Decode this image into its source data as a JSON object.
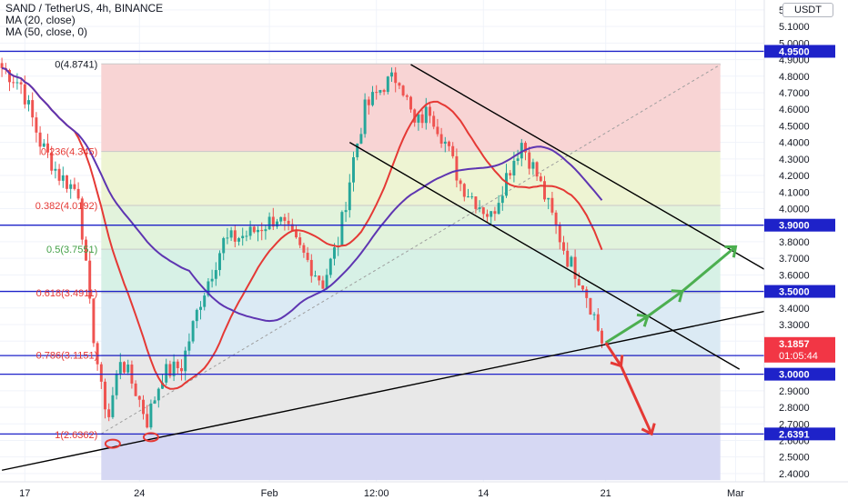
{
  "header": {
    "symbol_line": "SAND / TetherUS, 4h, BINANCE",
    "ma1": "MA (20, close)",
    "ma2": "MA (50, close, 0)"
  },
  "currency": "USDT",
  "colors": {
    "candle_up": "#26a69a",
    "candle_down": "#ef5350",
    "ma20": "#e53935",
    "ma50": "#5e35b1",
    "hline": "#1e22c9",
    "trend": "#000000",
    "arrow_up": "#4caf50",
    "arrow_down": "#e53935",
    "fib_label": "#e53935",
    "fib_label_05": "#43a047",
    "price_tag": "#1e22c9",
    "last_price_tag": "#f23645"
  },
  "chart_data": {
    "type": "candlestick",
    "title": "SAND / TetherUS, 4h, BINANCE",
    "ylim": [
      2.35,
      5.26
    ],
    "y_ticks": [
      2.4,
      2.5,
      2.6,
      2.7,
      2.8,
      2.9,
      3.0,
      3.1,
      3.2,
      3.3,
      3.4,
      3.5,
      3.6,
      3.7,
      3.8,
      3.9,
      4.0,
      4.1,
      4.2,
      4.3,
      4.4,
      4.5,
      4.6,
      4.7,
      4.8,
      4.9,
      5.0,
      5.1,
      5.2
    ],
    "y_tick_labels": [
      "2.4000",
      "2.5000",
      "2.6000",
      "2.7000",
      "2.8000",
      "2.9000",
      "3.0000",
      "3.1000",
      "3.2000",
      "3.3000",
      "3.4000",
      "3.5000",
      "3.6000",
      "3.7000",
      "3.8000",
      "3.9000",
      "4.0000",
      "4.1000",
      "4.2000",
      "4.3000",
      "4.4000",
      "4.5000",
      "4.6000",
      "4.7000",
      "4.8000",
      "4.9000",
      "5.0000",
      "5.1000",
      "5.2000"
    ],
    "x_labels": [
      "17",
      "24",
      "Feb",
      "12:00",
      "14",
      "21",
      "Mar"
    ],
    "x_label_bars": [
      6,
      36,
      70,
      98,
      126,
      158,
      192
    ],
    "n_bars": 200,
    "last_bar": 157,
    "close_path": [
      [
        0,
        4.85
      ],
      [
        5,
        4.75
      ],
      [
        10,
        4.4
      ],
      [
        15,
        4.2
      ],
      [
        20,
        4.1
      ],
      [
        23,
        3.4
      ],
      [
        26,
        2.9
      ],
      [
        28,
        2.75
      ],
      [
        31,
        3.1
      ],
      [
        35,
        2.9
      ],
      [
        38,
        2.72
      ],
      [
        42,
        3.0
      ],
      [
        47,
        3.05
      ],
      [
        52,
        3.45
      ],
      [
        58,
        3.8
      ],
      [
        65,
        3.85
      ],
      [
        72,
        3.95
      ],
      [
        78,
        3.75
      ],
      [
        84,
        3.55
      ],
      [
        88,
        3.8
      ],
      [
        92,
        4.3
      ],
      [
        95,
        4.6
      ],
      [
        100,
        4.75
      ],
      [
        104,
        4.8
      ],
      [
        108,
        4.5
      ],
      [
        112,
        4.6
      ],
      [
        116,
        4.4
      ],
      [
        120,
        4.15
      ],
      [
        124,
        4.05
      ],
      [
        128,
        3.95
      ],
      [
        132,
        4.2
      ],
      [
        136,
        4.4
      ],
      [
        140,
        4.2
      ],
      [
        144,
        3.95
      ],
      [
        148,
        3.7
      ],
      [
        152,
        3.55
      ],
      [
        155,
        3.35
      ],
      [
        157,
        3.19
      ]
    ],
    "hlines": [
      {
        "price": 4.95,
        "label": "4.9500"
      },
      {
        "price": 3.9,
        "label": "3.9000"
      },
      {
        "price": 3.5,
        "label": "3.5000"
      },
      {
        "price": 3.1123,
        "label": "3.1123"
      },
      {
        "price": 3.0,
        "label": "3.0000"
      },
      {
        "price": 2.6391,
        "label": "2.6391"
      }
    ],
    "last_price": {
      "value": 3.1857,
      "label": "3.1857",
      "countdown": "01:05:44"
    },
    "fib": {
      "bar_start": 26,
      "bar_end": 188,
      "levels": [
        {
          "ratio": 0,
          "price": 4.8741,
          "label": "0(4.8741)",
          "fill": "#f8d4d4"
        },
        {
          "ratio": 0.236,
          "price": 4.345,
          "label": "0.236(4.345)",
          "fill": "#eef4d3"
        },
        {
          "ratio": 0.382,
          "price": 4.0192,
          "label": "0.382(4.0192)",
          "fill": "#e2f3dc"
        },
        {
          "ratio": 0.5,
          "price": 3.7551,
          "label": "0.5(3.7551)",
          "fill": "#d7f1e6"
        },
        {
          "ratio": 0.618,
          "price": 3.4911,
          "label": "0.618(3.4911)",
          "fill": "#dbeaf4"
        },
        {
          "ratio": 0.786,
          "price": 3.1151,
          "label": "0.786(3.1151)",
          "fill": "#e8e8e8"
        },
        {
          "ratio": 1,
          "price": 2.6362,
          "label": "1(2.6362)",
          "fill": "#d6d8f3"
        }
      ],
      "bottom_price": 2.36
    },
    "trendlines": [
      {
        "name": "support",
        "from": [
          0,
          2.42
        ],
        "to": [
          208,
          3.42
        ]
      },
      {
        "name": "channel-upper",
        "from": [
          107,
          4.87
        ],
        "to": [
          208,
          3.52
        ]
      },
      {
        "name": "channel-lower",
        "from": [
          91,
          4.4
        ],
        "to": [
          193,
          3.03
        ]
      }
    ],
    "fib_diagonal": {
      "from": [
        26,
        2.64
      ],
      "to": [
        188,
        4.87
      ]
    },
    "arrows_up": [
      [
        158,
        3.19
      ],
      [
        169,
        3.35
      ],
      [
        178,
        3.5
      ],
      [
        192,
        3.77
      ]
    ],
    "arrows_down": [
      [
        158,
        3.19
      ],
      [
        162,
        3.05
      ],
      [
        170,
        2.64
      ]
    ],
    "circles": [
      [
        29,
        2.58
      ],
      [
        39,
        2.62
      ]
    ]
  }
}
